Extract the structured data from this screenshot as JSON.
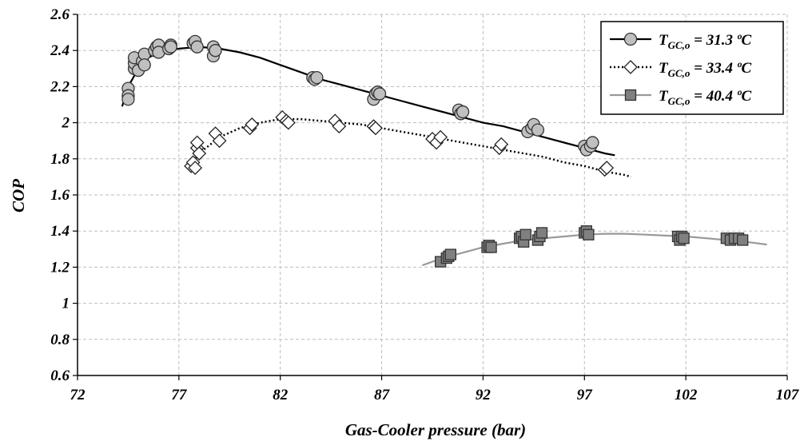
{
  "chart_data": {
    "type": "scatter",
    "xlabel": "Gas-Cooler pressure (bar)",
    "ylabel": "COP",
    "xlim": [
      72,
      107
    ],
    "ylim": [
      0.6,
      2.6
    ],
    "x_ticks": [
      "72",
      "77",
      "82",
      "87",
      "92",
      "97",
      "102",
      "107"
    ],
    "y_ticks": [
      "0.6",
      "0.8",
      "1",
      "1.2",
      "1.4",
      "1.6",
      "1.8",
      "2",
      "2.2",
      "2.4",
      "2.6"
    ],
    "grid": true,
    "legend_position": "top-right",
    "series": [
      {
        "legend_prefix": "T",
        "legend_sub": "GC,o",
        "legend_suffix": " = 31.3 ºC",
        "marker": "circle",
        "line_style": "solid",
        "line_color": "#000000",
        "marker_fill": "#c0c0c0",
        "points": [
          [
            74.5,
            2.19
          ],
          [
            74.5,
            2.15
          ],
          [
            74.5,
            2.13
          ],
          [
            74.8,
            2.3
          ],
          [
            74.8,
            2.33
          ],
          [
            74.8,
            2.36
          ],
          [
            75.0,
            2.29
          ],
          [
            75.2,
            2.34
          ],
          [
            75.3,
            2.38
          ],
          [
            75.3,
            2.32
          ],
          [
            75.8,
            2.4
          ],
          [
            75.9,
            2.42
          ],
          [
            76.0,
            2.43
          ],
          [
            76.0,
            2.39
          ],
          [
            76.5,
            2.41
          ],
          [
            76.6,
            2.43
          ],
          [
            76.6,
            2.42
          ],
          [
            77.7,
            2.44
          ],
          [
            77.8,
            2.45
          ],
          [
            77.9,
            2.42
          ],
          [
            78.7,
            2.42
          ],
          [
            78.7,
            2.37
          ],
          [
            78.8,
            2.4
          ],
          [
            83.6,
            2.25
          ],
          [
            83.7,
            2.24
          ],
          [
            83.8,
            2.25
          ],
          [
            86.6,
            2.13
          ],
          [
            86.7,
            2.16
          ],
          [
            86.8,
            2.17
          ],
          [
            86.9,
            2.16
          ],
          [
            90.8,
            2.07
          ],
          [
            90.9,
            2.05
          ],
          [
            91.0,
            2.06
          ],
          [
            94.2,
            1.95
          ],
          [
            94.4,
            1.97
          ],
          [
            94.5,
            1.99
          ],
          [
            94.7,
            1.96
          ],
          [
            97.0,
            1.87
          ],
          [
            97.1,
            1.85
          ],
          [
            97.3,
            1.87
          ],
          [
            97.4,
            1.89
          ]
        ],
        "curve": [
          [
            74.2,
            2.09
          ],
          [
            74.5,
            2.2
          ],
          [
            75.0,
            2.3
          ],
          [
            75.5,
            2.36
          ],
          [
            76.0,
            2.39
          ],
          [
            77.0,
            2.41
          ],
          [
            78.0,
            2.42
          ],
          [
            79.0,
            2.41
          ],
          [
            80.0,
            2.39
          ],
          [
            81.0,
            2.36
          ],
          [
            82.0,
            2.32
          ],
          [
            83.0,
            2.28
          ],
          [
            84.0,
            2.24
          ],
          [
            85.0,
            2.21
          ],
          [
            86.0,
            2.18
          ],
          [
            87.0,
            2.15
          ],
          [
            88.0,
            2.12
          ],
          [
            89.0,
            2.09
          ],
          [
            90.0,
            2.06
          ],
          [
            91.0,
            2.03
          ],
          [
            92.0,
            2.0
          ],
          [
            93.0,
            1.98
          ],
          [
            94.0,
            1.95
          ],
          [
            95.0,
            1.92
          ],
          [
            96.0,
            1.89
          ],
          [
            97.0,
            1.86
          ],
          [
            98.0,
            1.83
          ],
          [
            98.5,
            1.82
          ]
        ]
      },
      {
        "legend_prefix": "T",
        "legend_sub": "GC,o",
        "legend_suffix": " = 33.4 ºC",
        "marker": "diamond",
        "line_style": "dotted",
        "line_color": "#000000",
        "marker_fill": "#ffffff",
        "points": [
          [
            77.6,
            1.76
          ],
          [
            77.7,
            1.78
          ],
          [
            77.8,
            1.75
          ],
          [
            77.9,
            1.86
          ],
          [
            77.9,
            1.89
          ],
          [
            78.0,
            1.83
          ],
          [
            78.8,
            1.94
          ],
          [
            79.0,
            1.9
          ],
          [
            80.5,
            1.97
          ],
          [
            80.6,
            1.99
          ],
          [
            82.1,
            2.03
          ],
          [
            82.3,
            2.01
          ],
          [
            82.4,
            2.0
          ],
          [
            84.7,
            2.01
          ],
          [
            84.9,
            1.98
          ],
          [
            86.6,
            1.98
          ],
          [
            86.7,
            1.97
          ],
          [
            89.5,
            1.91
          ],
          [
            89.7,
            1.89
          ],
          [
            89.9,
            1.92
          ],
          [
            92.8,
            1.86
          ],
          [
            92.9,
            1.88
          ],
          [
            98.0,
            1.74
          ],
          [
            98.1,
            1.75
          ]
        ],
        "curve": [
          [
            77.5,
            1.75
          ],
          [
            78.0,
            1.83
          ],
          [
            79.0,
            1.92
          ],
          [
            80.0,
            1.97
          ],
          [
            81.0,
            2.0
          ],
          [
            82.0,
            2.02
          ],
          [
            83.0,
            2.02
          ],
          [
            84.0,
            2.01
          ],
          [
            85.0,
            2.0
          ],
          [
            86.0,
            1.99
          ],
          [
            87.0,
            1.97
          ],
          [
            88.0,
            1.95
          ],
          [
            89.0,
            1.93
          ],
          [
            90.0,
            1.91
          ],
          [
            91.0,
            1.89
          ],
          [
            92.0,
            1.87
          ],
          [
            93.0,
            1.85
          ],
          [
            94.0,
            1.83
          ],
          [
            95.0,
            1.81
          ],
          [
            96.0,
            1.78
          ],
          [
            97.0,
            1.76
          ],
          [
            98.0,
            1.73
          ],
          [
            99.0,
            1.71
          ],
          [
            99.3,
            1.7
          ]
        ]
      },
      {
        "legend_prefix": "T",
        "legend_sub": "GC,o",
        "legend_suffix": " = 40.4 ºC",
        "marker": "square",
        "line_style": "solid",
        "line_color": "#999999",
        "marker_fill": "#808080",
        "points": [
          [
            89.9,
            1.23
          ],
          [
            90.2,
            1.25
          ],
          [
            90.3,
            1.26
          ],
          [
            90.4,
            1.27
          ],
          [
            92.2,
            1.31
          ],
          [
            92.3,
            1.32
          ],
          [
            92.4,
            1.31
          ],
          [
            93.8,
            1.36
          ],
          [
            93.9,
            1.37
          ],
          [
            94.0,
            1.34
          ],
          [
            94.1,
            1.38
          ],
          [
            94.7,
            1.35
          ],
          [
            94.8,
            1.37
          ],
          [
            94.9,
            1.39
          ],
          [
            97.0,
            1.39
          ],
          [
            97.1,
            1.4
          ],
          [
            97.2,
            1.38
          ],
          [
            101.6,
            1.37
          ],
          [
            101.7,
            1.35
          ],
          [
            101.8,
            1.37
          ],
          [
            101.9,
            1.36
          ],
          [
            104.0,
            1.36
          ],
          [
            104.2,
            1.35
          ],
          [
            104.4,
            1.36
          ],
          [
            104.6,
            1.36
          ],
          [
            104.8,
            1.35
          ]
        ],
        "curve": [
          [
            89.0,
            1.21
          ],
          [
            90.0,
            1.25
          ],
          [
            91.0,
            1.28
          ],
          [
            92.0,
            1.31
          ],
          [
            93.0,
            1.33
          ],
          [
            94.0,
            1.35
          ],
          [
            95.0,
            1.36
          ],
          [
            96.0,
            1.37
          ],
          [
            97.0,
            1.38
          ],
          [
            98.0,
            1.385
          ],
          [
            99.0,
            1.385
          ],
          [
            100.0,
            1.38
          ],
          [
            101.0,
            1.375
          ],
          [
            102.0,
            1.37
          ],
          [
            103.0,
            1.36
          ],
          [
            104.0,
            1.35
          ],
          [
            105.0,
            1.34
          ],
          [
            106.0,
            1.325
          ]
        ]
      }
    ]
  }
}
